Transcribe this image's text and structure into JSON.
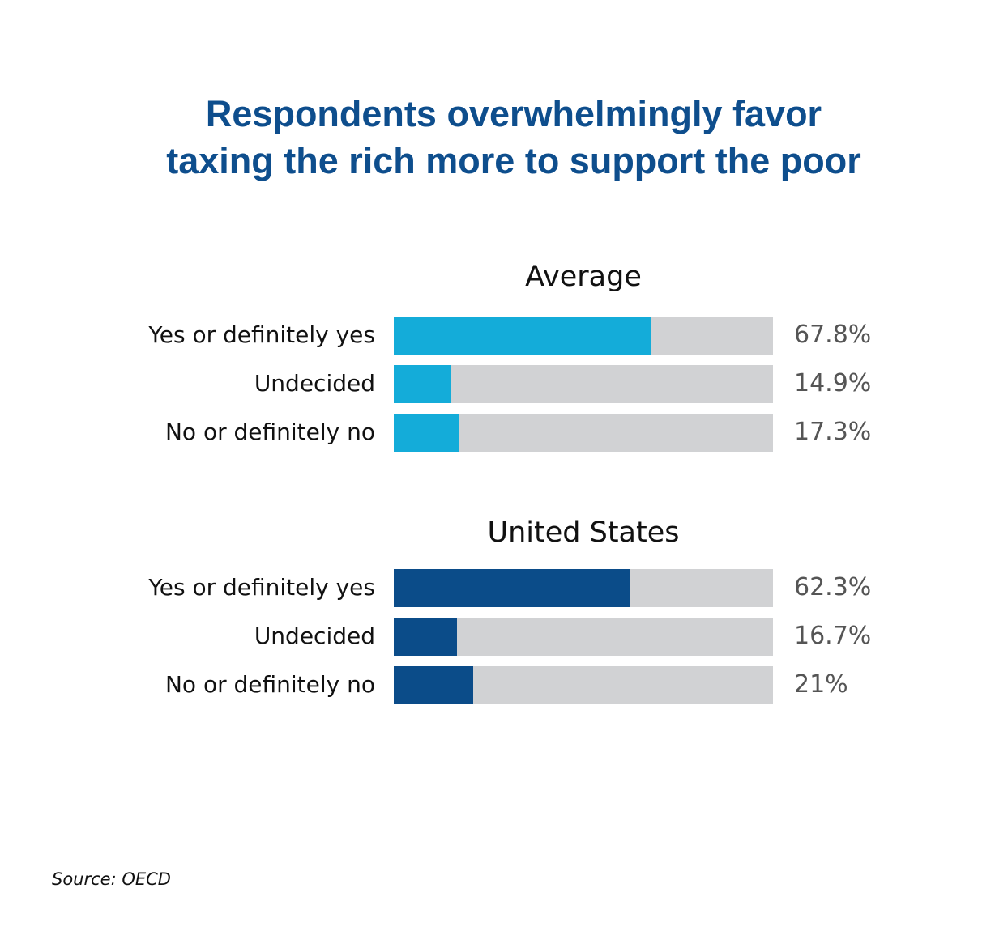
{
  "title_lines": [
    "Respondents overwhelmingly favor",
    "taxing the rich more to support the poor"
  ],
  "source": "Source: OECD",
  "colors": {
    "average": "#14acd9",
    "united_states": "#0b4c89",
    "track": "#d1d2d4",
    "title": "#0e4e8d"
  },
  "chart_data": [
    {
      "type": "bar",
      "title": "Average",
      "categories": [
        "Yes or definitely yes",
        "Undecided",
        "No or definitely no"
      ],
      "values": [
        67.8,
        14.9,
        17.3
      ],
      "value_labels": [
        "67.8%",
        "14.9%",
        "17.3%"
      ],
      "xlim": [
        0,
        100
      ],
      "color": "#14acd9"
    },
    {
      "type": "bar",
      "title": "United States",
      "categories": [
        "Yes or definitely yes",
        "Undecided",
        "No or definitely no"
      ],
      "values": [
        62.3,
        16.7,
        21
      ],
      "value_labels": [
        "62.3%",
        "16.7%",
        "21%"
      ],
      "xlim": [
        0,
        100
      ],
      "color": "#0b4c89"
    }
  ]
}
